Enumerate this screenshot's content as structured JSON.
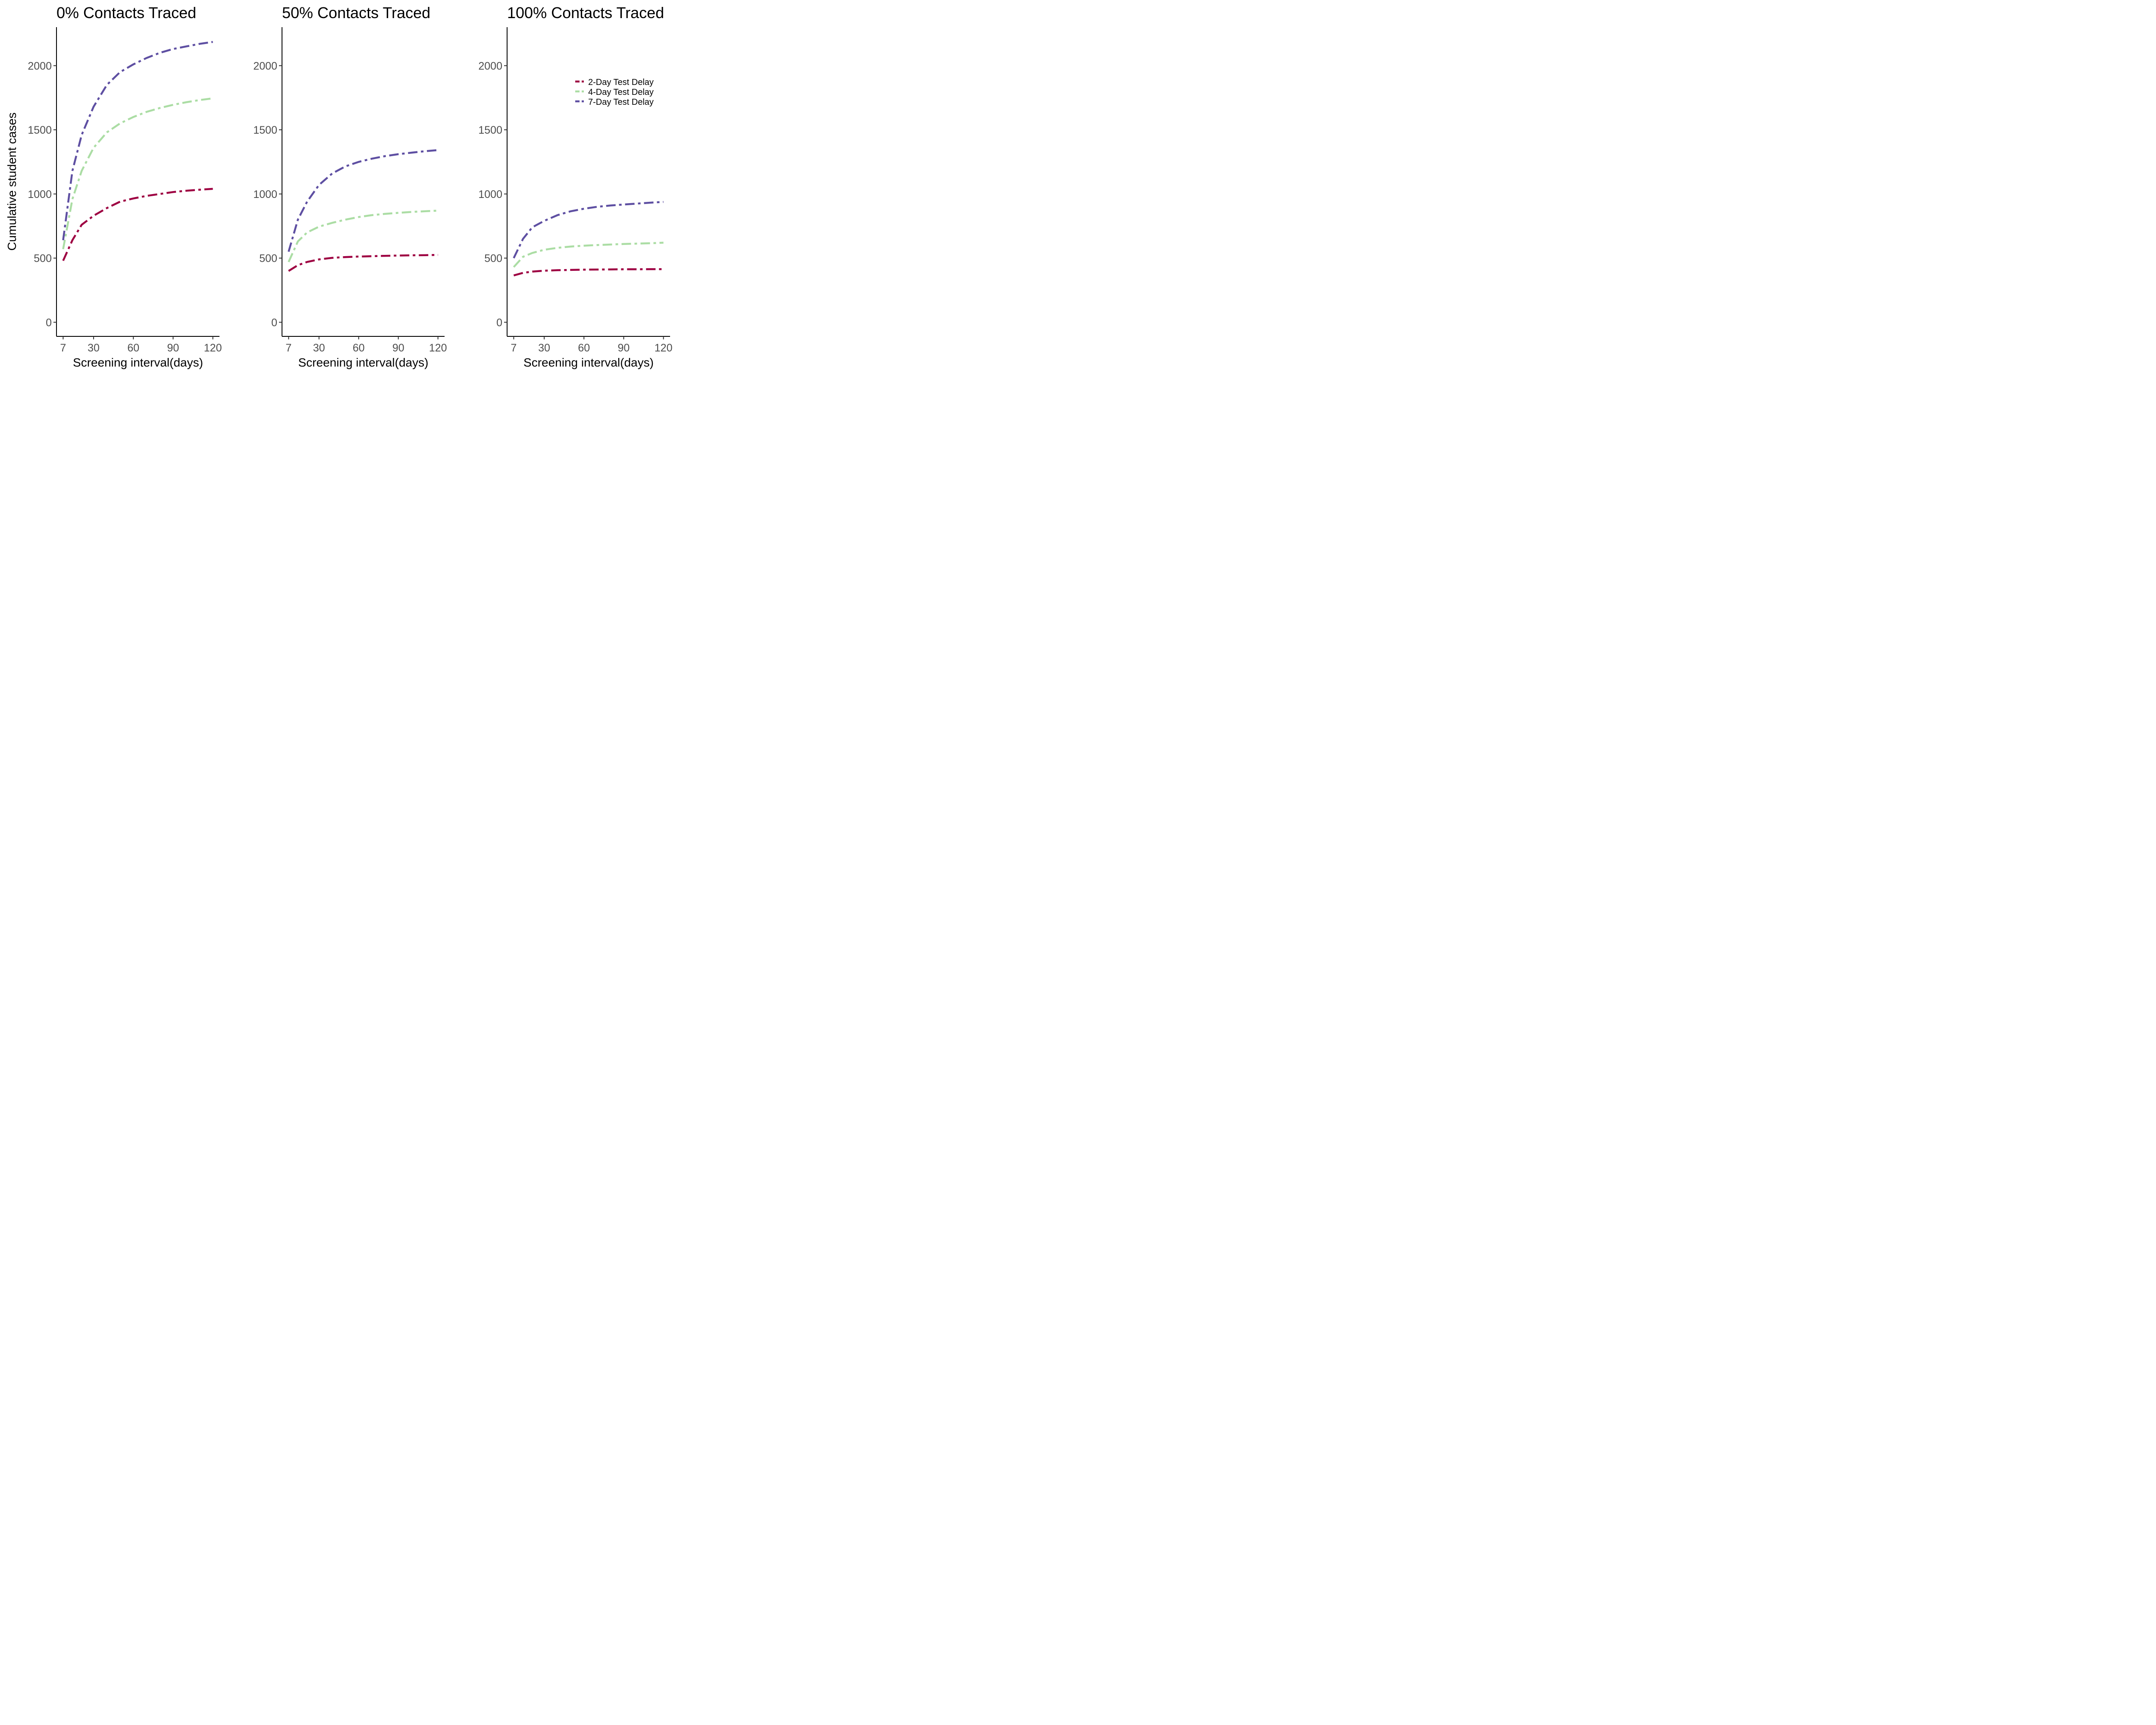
{
  "figure": {
    "ylabel": "Cumulative student cases",
    "xlabel": "Screening interval(days)",
    "colors": {
      "2-Day Test Delay": "#9e0142",
      "4-Day Test Delay": "#abdda4",
      "7-Day Test Delay": "#5e4fa2"
    },
    "legend": [
      "2-Day Test Delay",
      "4-Day Test Delay",
      "7-Day Test Delay"
    ]
  },
  "chart_data": [
    {
      "type": "line",
      "title": "0% Contacts Traced",
      "xlabel": "Screening interval(days)",
      "ylabel": "Cumulative student cases",
      "xticks": [
        7,
        30,
        60,
        90,
        120
      ],
      "yticks": [
        0,
        500,
        1000,
        1500,
        2000
      ],
      "xlim": [
        2,
        125
      ],
      "ylim": [
        -110,
        2300
      ],
      "x": [
        7,
        14,
        21,
        30,
        40,
        50,
        60,
        70,
        80,
        90,
        100,
        110,
        120
      ],
      "series": [
        {
          "name": "2-Day Test Delay",
          "color": "#9e0142",
          "values": [
            480,
            640,
            760,
            830,
            890,
            940,
            965,
            985,
            1000,
            1015,
            1025,
            1033,
            1040
          ]
        },
        {
          "name": "4-Day Test Delay",
          "color": "#abdda4",
          "values": [
            570,
            960,
            1180,
            1360,
            1480,
            1550,
            1600,
            1640,
            1670,
            1695,
            1715,
            1732,
            1745
          ]
        },
        {
          "name": "7-Day Test Delay",
          "color": "#5e4fa2",
          "values": [
            640,
            1180,
            1460,
            1680,
            1850,
            1950,
            2010,
            2060,
            2100,
            2130,
            2150,
            2170,
            2185
          ]
        }
      ],
      "legend": null
    },
    {
      "type": "line",
      "title": "50% Contacts Traced",
      "xlabel": "Screening interval(days)",
      "ylabel": "",
      "xticks": [
        7,
        30,
        60,
        90,
        120
      ],
      "yticks": [
        0,
        500,
        1000,
        1500,
        2000
      ],
      "xlim": [
        2,
        125
      ],
      "ylim": [
        -110,
        2300
      ],
      "x": [
        7,
        14,
        21,
        30,
        40,
        50,
        60,
        70,
        80,
        90,
        100,
        110,
        120
      ],
      "series": [
        {
          "name": "2-Day Test Delay",
          "color": "#9e0142",
          "values": [
            400,
            445,
            470,
            490,
            502,
            508,
            512,
            515,
            518,
            520,
            522,
            523,
            525
          ]
        },
        {
          "name": "4-Day Test Delay",
          "color": "#abdda4",
          "values": [
            470,
            630,
            700,
            745,
            775,
            800,
            820,
            835,
            845,
            853,
            860,
            865,
            870
          ]
        },
        {
          "name": "7-Day Test Delay",
          "color": "#5e4fa2",
          "values": [
            550,
            800,
            940,
            1070,
            1160,
            1215,
            1250,
            1275,
            1295,
            1310,
            1322,
            1333,
            1342
          ]
        }
      ],
      "legend": null
    },
    {
      "type": "line",
      "title": "100% Contacts Traced",
      "xlabel": "Screening interval(days)",
      "ylabel": "",
      "xticks": [
        7,
        30,
        60,
        90,
        120
      ],
      "yticks": [
        0,
        500,
        1000,
        1500,
        2000
      ],
      "xlim": [
        2,
        125
      ],
      "ylim": [
        -110,
        2300
      ],
      "x": [
        7,
        14,
        21,
        30,
        40,
        50,
        60,
        70,
        80,
        90,
        100,
        110,
        120
      ],
      "series": [
        {
          "name": "2-Day Test Delay",
          "color": "#9e0142",
          "values": [
            365,
            385,
            395,
            402,
            406,
            408,
            410,
            411,
            412,
            413,
            413,
            414,
            414
          ]
        },
        {
          "name": "4-Day Test Delay",
          "color": "#abdda4",
          "values": [
            430,
            510,
            540,
            565,
            580,
            590,
            597,
            602,
            606,
            610,
            613,
            616,
            620
          ]
        },
        {
          "name": "7-Day Test Delay",
          "color": "#5e4fa2",
          "values": [
            500,
            650,
            740,
            790,
            835,
            865,
            885,
            900,
            910,
            918,
            925,
            932,
            938
          ]
        }
      ],
      "legend": "top-right"
    }
  ]
}
